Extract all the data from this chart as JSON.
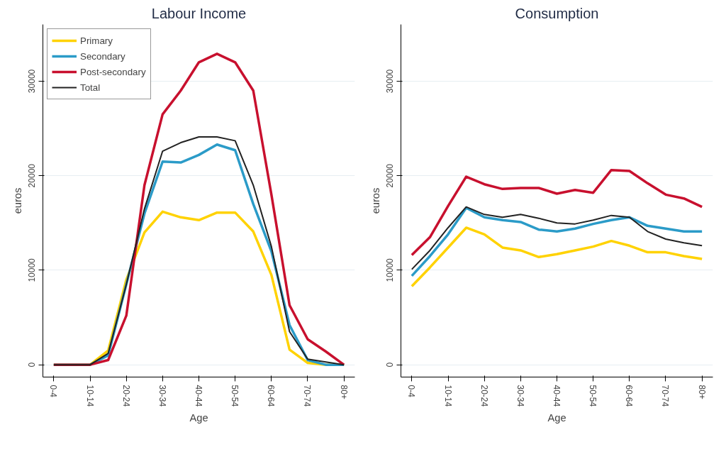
{
  "chart_data": [
    {
      "type": "line",
      "title": "Labour Income",
      "xlabel": "Age",
      "ylabel": "euros",
      "categories": [
        "0-4",
        null,
        "10-14",
        null,
        "20-24",
        null,
        "30-34",
        null,
        "40-44",
        null,
        "50-54",
        null,
        "60-64",
        null,
        "70-74",
        null,
        "80+"
      ],
      "ylim": [
        -1300,
        36000
      ],
      "yticks": [
        0,
        10000,
        20000,
        30000
      ],
      "grid": "y",
      "legend": "top left",
      "series": [
        {
          "name": "Primary",
          "color": "#ffd200",
          "values": [
            0,
            0,
            0,
            1500,
            9000,
            14000,
            16200,
            15600,
            15300,
            16100,
            16100,
            14100,
            9500,
            1600,
            200,
            0,
            0
          ]
        },
        {
          "name": "Secondary",
          "color": "#2b9bc8",
          "values": [
            0,
            0,
            0,
            1000,
            8500,
            16000,
            21500,
            21400,
            22200,
            23300,
            22700,
            17000,
            12000,
            4200,
            500,
            0,
            0
          ]
        },
        {
          "name": "Post-secondary",
          "color": "#c8102e",
          "values": [
            0,
            0,
            0,
            500,
            5200,
            19000,
            26500,
            29000,
            32000,
            32900,
            32000,
            29000,
            18000,
            6300,
            2700,
            1400,
            0
          ]
        },
        {
          "name": "Total",
          "color": "#222222",
          "values": [
            0,
            0,
            0,
            1200,
            8500,
            16500,
            22600,
            23500,
            24100,
            24100,
            23700,
            19000,
            12500,
            3500,
            600,
            300,
            0
          ]
        }
      ]
    },
    {
      "type": "line",
      "title": "Consumption",
      "xlabel": "Age",
      "ylabel": "euros",
      "categories": [
        "0-4",
        null,
        "10-14",
        null,
        "20-24",
        null,
        "30-34",
        null,
        "40-44",
        null,
        "50-54",
        null,
        "60-64",
        null,
        "70-74",
        null,
        "80+"
      ],
      "ylim": [
        -1300,
        36000
      ],
      "yticks": [
        0,
        10000,
        20000,
        30000
      ],
      "grid": "y",
      "series": [
        {
          "color": "#ffd200",
          "values": [
            8300,
            10300,
            12400,
            14500,
            13800,
            12400,
            12100,
            11400,
            11700,
            12100,
            12500,
            13100,
            12600,
            11900,
            11900,
            11500,
            11200
          ]
        },
        {
          "color": "#2b9bc8",
          "values": [
            9400,
            11500,
            13800,
            16600,
            15600,
            15300,
            15100,
            14300,
            14100,
            14400,
            14900,
            15300,
            15600,
            14700,
            14400,
            14100,
            14100
          ]
        },
        {
          "color": "#c8102e",
          "values": [
            11600,
            13500,
            16800,
            19900,
            19100,
            18600,
            18700,
            18700,
            18100,
            18500,
            18200,
            20600,
            20500,
            19200,
            18000,
            17600,
            16700
          ]
        },
        {
          "color": "#222222",
          "values": [
            10100,
            12100,
            14500,
            16700,
            15900,
            15600,
            15900,
            15500,
            15000,
            14900,
            15300,
            15800,
            15600,
            14100,
            13300,
            12900,
            12600
          ]
        }
      ]
    }
  ]
}
